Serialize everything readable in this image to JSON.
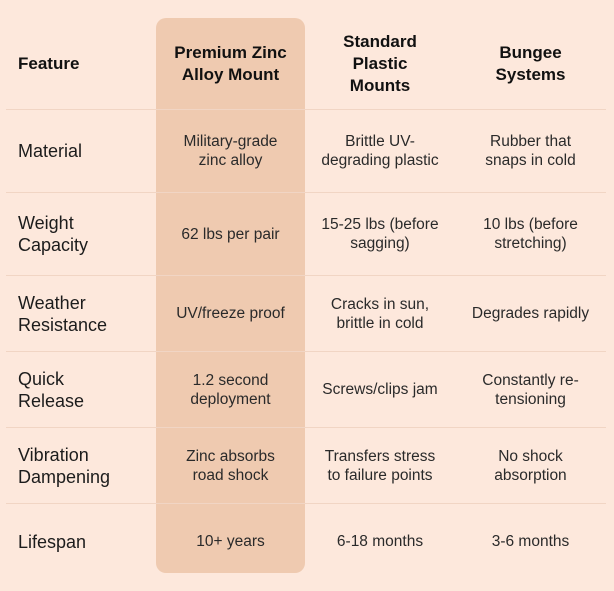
{
  "table": {
    "header": [
      "Feature",
      "Premium Zinc Alloy Mount",
      "Standard Plastic Mounts",
      "Bungee Systems"
    ],
    "rows": [
      [
        "Material",
        "Military-grade zinc alloy",
        "Brittle UV-degrading plastic",
        "Rubber that snaps in cold"
      ],
      [
        "Weight Capacity",
        "62 lbs per pair",
        "15-25 lbs (before sagging)",
        "10 lbs (before stretching)"
      ],
      [
        "Weather Resistance",
        "UV/freeze proof",
        "Cracks in sun, brittle in cold",
        "Degrades rapidly"
      ],
      [
        "Quick Release",
        "1.2 second deployment",
        "Screws/clips jam",
        "Constantly re-tensioning"
      ],
      [
        "Vibration Dampening",
        "Zinc absorbs road shock",
        "Transfers stress to failure points",
        "No shock absorption"
      ],
      [
        "Lifespan",
        "10+ years",
        "6-18 months",
        "3-6 months"
      ]
    ]
  }
}
